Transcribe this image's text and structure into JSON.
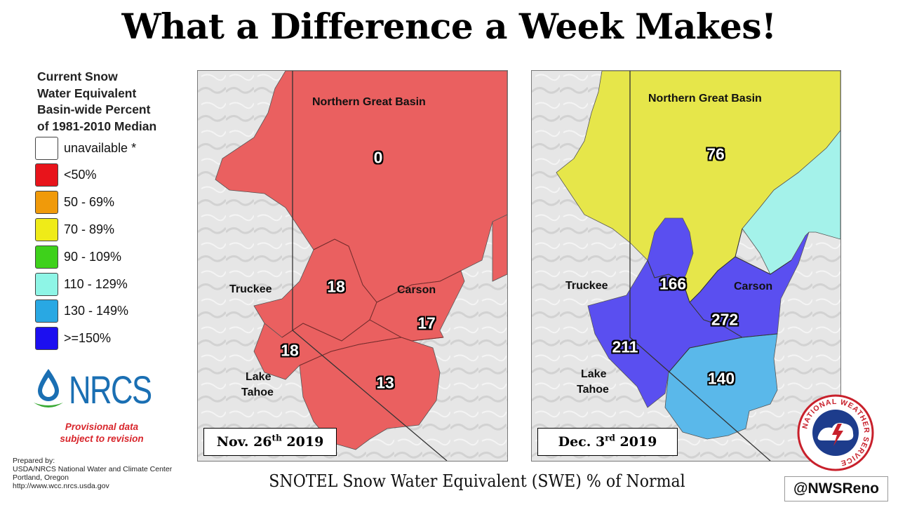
{
  "title": "What a Difference a Week Makes!",
  "legend": {
    "title_lines": [
      "Current Snow",
      "Water Equivalent",
      "Basin-wide Percent",
      "of 1981-2010 Median"
    ],
    "items": [
      {
        "label": "unavailable *",
        "color": "#ffffff"
      },
      {
        "label": "<50%",
        "color": "#e8141b"
      },
      {
        "label": "50 - 69%",
        "color": "#f09a0a"
      },
      {
        "label": "70 - 89%",
        "color": "#efeb18"
      },
      {
        "label": "90 - 109%",
        "color": "#3ed11b"
      },
      {
        "label": "110 - 129%",
        "color": "#8ef5e6"
      },
      {
        "label": "130 - 149%",
        "color": "#29a8e3"
      },
      {
        "label": ">=150%",
        "color": "#1c0ff0"
      }
    ]
  },
  "nrcs": {
    "logo_text": "NRCS",
    "provisional": [
      "Provisional data",
      "subject to revision"
    ],
    "prepared_lines": [
      "Prepared by:",
      "USDA/NRCS National Water and Climate Center",
      "Portland, Oregon",
      "http://www.wcc.nrcs.usda.gov"
    ]
  },
  "maps": {
    "left": {
      "date_main": "Nov. 26",
      "date_sup": "th",
      "date_year": " 2019",
      "labels": {
        "northern": "Northern Great Basin",
        "truckee": "Truckee",
        "carson": "Carson",
        "tahoe_1": "Lake",
        "tahoe_2": "Tahoe"
      },
      "values": {
        "northern": "0",
        "truckee": "18",
        "carson": "17",
        "tahoe": "18",
        "south": "13"
      },
      "colors": {
        "northern": "#ea6060",
        "truckee": "#ea6060",
        "carson": "#ea6060",
        "tahoe": "#ea6060",
        "south": "#ea6060",
        "northeast": "#ea6060"
      }
    },
    "right": {
      "date_main": "Dec. 3",
      "date_sup": "rd",
      "date_year": " 2019",
      "labels": {
        "northern": "Northern Great Basin",
        "truckee": "Truckee",
        "carson": "Carson",
        "tahoe_1": "Lake",
        "tahoe_2": "Tahoe"
      },
      "values": {
        "northern": "76",
        "truckee": "166",
        "carson": "272",
        "tahoe": "211",
        "south": "140"
      },
      "colors": {
        "northern": "#e6e64a",
        "truckee": "#5a4ff0",
        "carson": "#5a4ff0",
        "tahoe": "#5a4ff0",
        "south": "#5ab8ea",
        "northeast": "#a4f2ea"
      }
    }
  },
  "caption": "SNOTEL Snow Water Equivalent (SWE) % of Normal",
  "handle": "@NWSReno",
  "nws_logo_text": "NATIONAL WEATHER SERVICE"
}
